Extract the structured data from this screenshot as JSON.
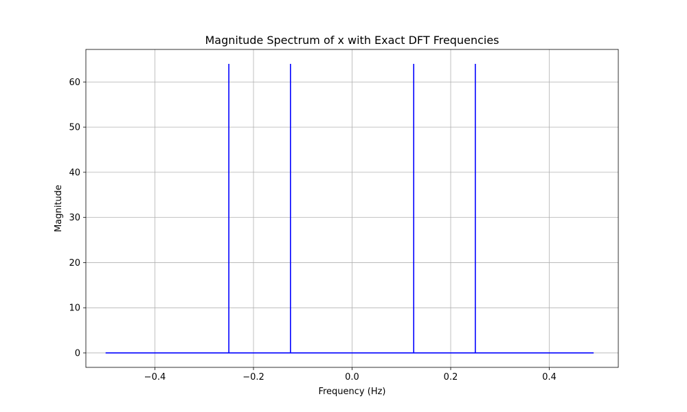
{
  "chart_data": {
    "type": "line",
    "title": "Magnitude Spectrum of x with Exact DFT Frequencies",
    "xlabel": "Frequency (Hz)",
    "ylabel": "Magnitude",
    "xlim": [
      -0.54,
      0.54
    ],
    "ylim": [
      -3.2,
      67.2
    ],
    "grid": true,
    "series": [
      {
        "color": "#0000ff",
        "x": [
          -0.5,
          -0.25,
          -0.25,
          -0.25,
          -0.125,
          -0.125,
          -0.125,
          0.125,
          0.125,
          0.125,
          0.25,
          0.25,
          0.25,
          0.49
        ],
        "values": [
          0,
          0,
          64,
          0,
          0,
          64,
          0,
          0,
          64,
          0,
          0,
          64,
          0,
          0
        ]
      }
    ],
    "peaks": [
      {
        "x": -0.25,
        "y": 64
      },
      {
        "x": -0.125,
        "y": 64
      },
      {
        "x": 0.125,
        "y": 64
      },
      {
        "x": 0.25,
        "y": 64
      }
    ],
    "baseline": {
      "x_start": -0.5,
      "x_end": 0.49,
      "y": 0
    },
    "x_ticks": [
      {
        "value": -0.4,
        "label": "−0.4"
      },
      {
        "value": -0.2,
        "label": "−0.2"
      },
      {
        "value": 0.0,
        "label": "0.0"
      },
      {
        "value": 0.2,
        "label": "0.2"
      },
      {
        "value": 0.4,
        "label": "0.4"
      }
    ],
    "y_ticks": [
      {
        "value": 0,
        "label": "0"
      },
      {
        "value": 10,
        "label": "10"
      },
      {
        "value": 20,
        "label": "20"
      },
      {
        "value": 30,
        "label": "30"
      },
      {
        "value": 40,
        "label": "40"
      },
      {
        "value": 50,
        "label": "50"
      },
      {
        "value": 60,
        "label": "60"
      }
    ]
  }
}
